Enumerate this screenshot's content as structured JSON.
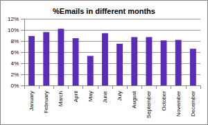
{
  "chart_data": {
    "type": "bar",
    "title": "%Emails in different months",
    "categories": [
      "January",
      "February",
      "March",
      "April",
      "May",
      "June",
      "July",
      "August",
      "September",
      "October",
      "November",
      "December"
    ],
    "values": [
      8.9,
      9.6,
      10.2,
      8.5,
      5.3,
      9.4,
      7.5,
      8.7,
      8.7,
      8.1,
      8.2,
      6.6
    ],
    "color": "#5a2cb8",
    "ylim": [
      0,
      12
    ],
    "yticks": [
      {
        "value": 0,
        "label": "0%"
      },
      {
        "value": 2,
        "label": "2%"
      },
      {
        "value": 4,
        "label": "4%"
      },
      {
        "value": 6,
        "label": "6%"
      },
      {
        "value": 8,
        "label": "8%"
      },
      {
        "value": 10,
        "label": "10%"
      },
      {
        "value": 12,
        "label": "12%"
      }
    ],
    "grid": true
  }
}
